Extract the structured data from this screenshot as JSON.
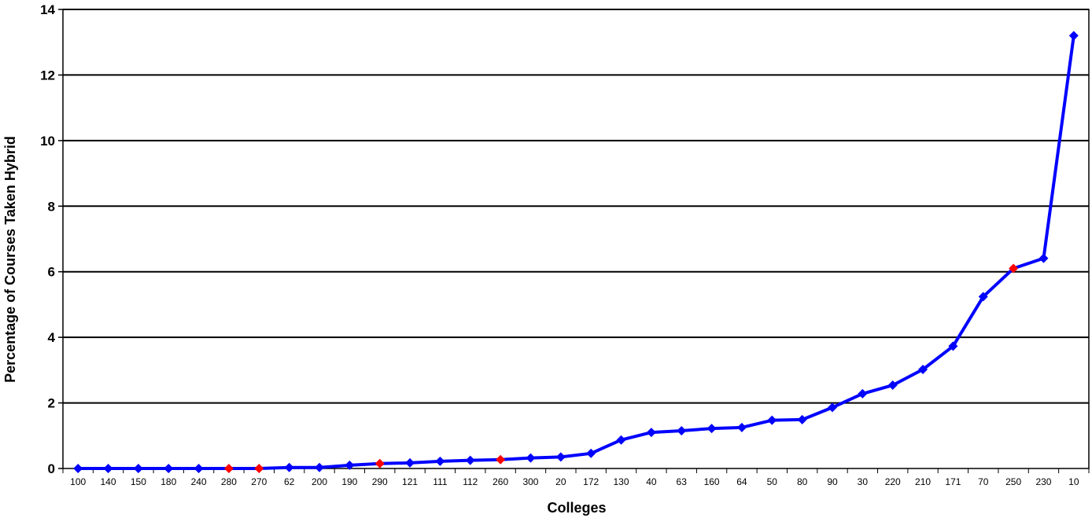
{
  "chart_data": {
    "type": "line",
    "title": "",
    "xlabel": "Colleges",
    "ylabel": "Percentage of Courses Taken Hybrid",
    "ylim": [
      0,
      14
    ],
    "yticks": [
      0,
      2,
      4,
      6,
      8,
      10,
      12,
      14
    ],
    "grid": true,
    "categories": [
      "100",
      "140",
      "150",
      "180",
      "240",
      "280",
      "270",
      "62",
      "200",
      "190",
      "290",
      "121",
      "111",
      "112",
      "260",
      "300",
      "20",
      "172",
      "130",
      "40",
      "63",
      "160",
      "64",
      "50",
      "80",
      "90",
      "30",
      "220",
      "210",
      "171",
      "70",
      "250",
      "230",
      "10"
    ],
    "values": [
      0.0,
      0.0,
      0.0,
      0.0,
      0.0,
      0.0,
      0.0,
      0.03,
      0.03,
      0.1,
      0.15,
      0.17,
      0.22,
      0.25,
      0.27,
      0.32,
      0.35,
      0.46,
      0.87,
      1.1,
      1.15,
      1.22,
      1.25,
      1.47,
      1.49,
      1.86,
      2.28,
      2.54,
      3.02,
      3.73,
      5.24,
      6.1,
      6.41,
      13.2
    ],
    "highlighted_categories": [
      "280",
      "270",
      "290",
      "260",
      "250"
    ],
    "line_color": "#0000ff",
    "marker_color": "#0000ff",
    "highlight_color": "#ff0000"
  }
}
